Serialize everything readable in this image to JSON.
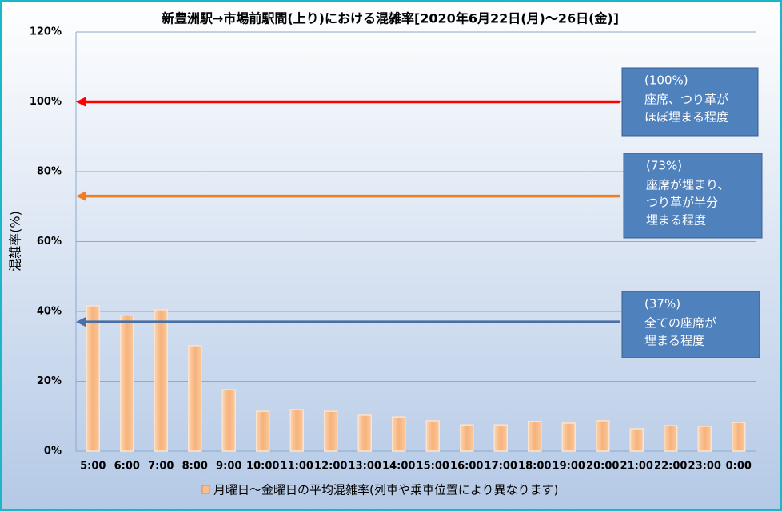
{
  "chart_data": {
    "type": "bar",
    "title": "新豊洲駅→市場前駅間(上り)における混雑率[2020年6月22日(月)～26日(金)]",
    "y_label": "混雑率(%)",
    "categories": [
      "5:00",
      "6:00",
      "7:00",
      "8:00",
      "9:00",
      "10:00",
      "11:00",
      "12:00",
      "13:00",
      "14:00",
      "15:00",
      "16:00",
      "17:00",
      "18:00",
      "19:00",
      "20:00",
      "21:00",
      "22:00",
      "23:00",
      "0:00"
    ],
    "series": [
      {
        "name": "月曜日～金曜日の平均混雑率(列車や乗車位置により異なります)",
        "color": "#f9bf8f",
        "values": [
          41.6,
          38.9,
          40.5,
          30.2,
          17.6,
          11.4,
          11.9,
          11.4,
          10.3,
          9.8,
          8.7,
          7.5,
          7.5,
          8.5,
          8.0,
          8.7,
          6.4,
          7.3,
          7.1,
          8.2
        ]
      }
    ],
    "ylim": [
      0,
      120
    ],
    "yticks": [
      {
        "value": 0,
        "label": "0%"
      },
      {
        "value": 20,
        "label": "20%"
      },
      {
        "value": 40,
        "label": "40%"
      },
      {
        "value": 60,
        "label": "60%"
      },
      {
        "value": 80,
        "label": "80%"
      },
      {
        "value": 100,
        "label": "100%"
      },
      {
        "value": 120,
        "label": "120%"
      }
    ],
    "grid": true,
    "reference_lines": [
      {
        "value": 100,
        "color": "#ff0000",
        "label": "(100%)",
        "text": [
          "座席、つり革が",
          "ほぼ埋まる程度"
        ]
      },
      {
        "value": 73,
        "color": "#f07d22",
        "label": "(73%)",
        "text": [
          "座席が埋まり、",
          "つり革が半分",
          "埋まる程度"
        ]
      },
      {
        "value": 37,
        "color": "#4a6fa5",
        "label": "(37%)",
        "text": [
          "全ての座席が",
          "埋まる程度"
        ]
      }
    ]
  }
}
